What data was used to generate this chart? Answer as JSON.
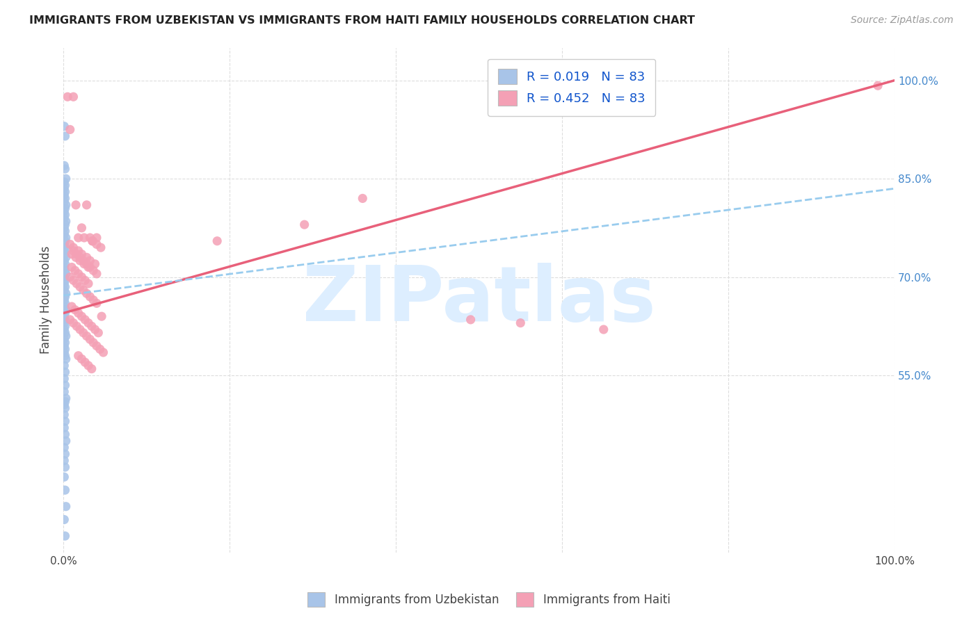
{
  "title": "IMMIGRANTS FROM UZBEKISTAN VS IMMIGRANTS FROM HAITI FAMILY HOUSEHOLDS CORRELATION CHART",
  "source": "Source: ZipAtlas.com",
  "ylabel": "Family Households",
  "ytick_values": [
    0.55,
    0.7,
    0.85,
    1.0
  ],
  "ytick_labels": [
    "55.0%",
    "70.0%",
    "85.0%",
    "100.0%"
  ],
  "xtick_values": [
    0.0,
    0.2,
    0.4,
    0.6,
    0.8,
    1.0
  ],
  "xtick_labels_show": [
    "0.0%",
    "",
    "",
    "",
    "",
    "100.0%"
  ],
  "r_uzbekistan": 0.019,
  "r_haiti": 0.452,
  "n": 83,
  "color_uzbekistan": "#a8c4e8",
  "color_haiti": "#f4a0b5",
  "trendline_uzbekistan_color": "#99ccee",
  "trendline_haiti_color": "#e8607a",
  "watermark_text": "ZIPatlas",
  "watermark_color": "#ddeeff",
  "background_color": "#ffffff",
  "grid_color": "#dddddd",
  "grid_style": "--",
  "ylim_min": 0.28,
  "ylim_max": 1.05,
  "xlim_min": 0.0,
  "xlim_max": 1.0,
  "trendline_haiti_x0": 0.0,
  "trendline_haiti_y0": 0.645,
  "trendline_haiti_x1": 1.0,
  "trendline_haiti_y1": 1.0,
  "trendline_uzbek_x0": 0.0,
  "trendline_uzbek_y0": 0.672,
  "trendline_uzbek_x1": 1.0,
  "trendline_uzbek_y1": 0.835,
  "uzbekistan_x": [
    0.001,
    0.002,
    0.001,
    0.002,
    0.003,
    0.001,
    0.002,
    0.001,
    0.002,
    0.001,
    0.002,
    0.001,
    0.003,
    0.002,
    0.001,
    0.002,
    0.001,
    0.003,
    0.002,
    0.001,
    0.002,
    0.001,
    0.003,
    0.002,
    0.001,
    0.002,
    0.001,
    0.002,
    0.003,
    0.001,
    0.002,
    0.001,
    0.002,
    0.003,
    0.001,
    0.002,
    0.001,
    0.002,
    0.001,
    0.003,
    0.002,
    0.001,
    0.002,
    0.001,
    0.003,
    0.002,
    0.001,
    0.002,
    0.001,
    0.002,
    0.001,
    0.002,
    0.003,
    0.001,
    0.002,
    0.001,
    0.002,
    0.001,
    0.002,
    0.003,
    0.001,
    0.002,
    0.001,
    0.002,
    0.001,
    0.003,
    0.002,
    0.001,
    0.002,
    0.001,
    0.002,
    0.001,
    0.002,
    0.003,
    0.001,
    0.002,
    0.001,
    0.002,
    0.001,
    0.002,
    0.003,
    0.001,
    0.002
  ],
  "uzbekistan_y": [
    0.93,
    0.915,
    0.87,
    0.865,
    0.85,
    0.845,
    0.84,
    0.835,
    0.83,
    0.825,
    0.82,
    0.815,
    0.81,
    0.805,
    0.8,
    0.795,
    0.79,
    0.785,
    0.78,
    0.775,
    0.77,
    0.765,
    0.76,
    0.755,
    0.75,
    0.745,
    0.74,
    0.735,
    0.73,
    0.725,
    0.72,
    0.715,
    0.71,
    0.705,
    0.7,
    0.695,
    0.69,
    0.685,
    0.68,
    0.675,
    0.67,
    0.665,
    0.66,
    0.655,
    0.65,
    0.645,
    0.64,
    0.635,
    0.63,
    0.625,
    0.62,
    0.615,
    0.61,
    0.605,
    0.6,
    0.595,
    0.59,
    0.585,
    0.58,
    0.575,
    0.565,
    0.555,
    0.545,
    0.535,
    0.525,
    0.515,
    0.51,
    0.505,
    0.5,
    0.49,
    0.48,
    0.47,
    0.46,
    0.45,
    0.44,
    0.43,
    0.42,
    0.41,
    0.395,
    0.375,
    0.35,
    0.33,
    0.305
  ],
  "haiti_x": [
    0.005,
    0.008,
    0.012,
    0.015,
    0.018,
    0.022,
    0.025,
    0.028,
    0.032,
    0.035,
    0.01,
    0.015,
    0.02,
    0.025,
    0.03,
    0.035,
    0.04,
    0.008,
    0.012,
    0.018,
    0.022,
    0.028,
    0.032,
    0.038,
    0.01,
    0.014,
    0.018,
    0.022,
    0.026,
    0.03,
    0.035,
    0.04,
    0.045,
    0.012,
    0.016,
    0.02,
    0.024,
    0.028,
    0.032,
    0.036,
    0.04,
    0.008,
    0.012,
    0.016,
    0.02,
    0.024,
    0.028,
    0.032,
    0.036,
    0.04,
    0.01,
    0.014,
    0.018,
    0.022,
    0.026,
    0.03,
    0.034,
    0.038,
    0.042,
    0.046,
    0.008,
    0.012,
    0.016,
    0.02,
    0.024,
    0.028,
    0.032,
    0.036,
    0.04,
    0.044,
    0.048,
    0.018,
    0.022,
    0.026,
    0.03,
    0.034,
    0.185,
    0.29,
    0.36,
    0.49,
    0.55,
    0.65,
    0.98
  ],
  "haiti_y": [
    0.975,
    0.925,
    0.975,
    0.81,
    0.76,
    0.775,
    0.76,
    0.81,
    0.76,
    0.755,
    0.735,
    0.73,
    0.725,
    0.72,
    0.715,
    0.755,
    0.76,
    0.75,
    0.745,
    0.74,
    0.735,
    0.73,
    0.725,
    0.72,
    0.715,
    0.71,
    0.705,
    0.7,
    0.695,
    0.69,
    0.755,
    0.75,
    0.745,
    0.74,
    0.735,
    0.73,
    0.725,
    0.72,
    0.715,
    0.71,
    0.705,
    0.7,
    0.695,
    0.69,
    0.685,
    0.68,
    0.675,
    0.67,
    0.665,
    0.66,
    0.655,
    0.65,
    0.645,
    0.64,
    0.635,
    0.63,
    0.625,
    0.62,
    0.615,
    0.64,
    0.635,
    0.63,
    0.625,
    0.62,
    0.615,
    0.61,
    0.605,
    0.6,
    0.595,
    0.59,
    0.585,
    0.58,
    0.575,
    0.57,
    0.565,
    0.56,
    0.755,
    0.78,
    0.82,
    0.635,
    0.63,
    0.62,
    0.992
  ]
}
